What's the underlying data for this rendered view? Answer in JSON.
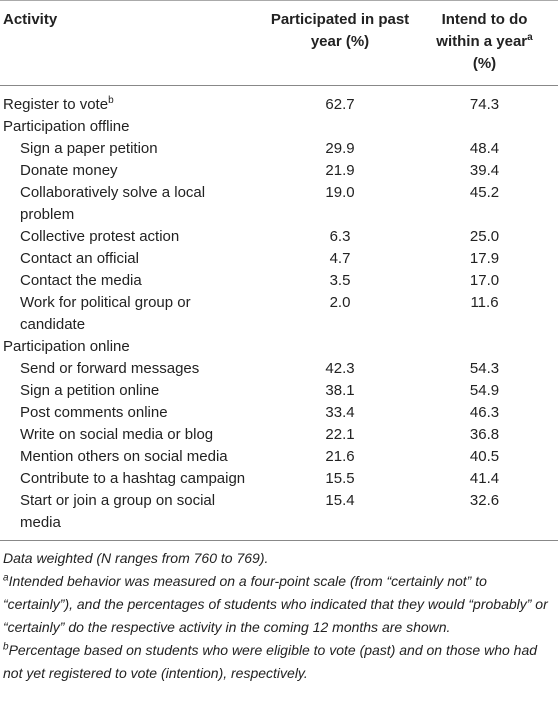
{
  "table": {
    "columns": [
      {
        "text": "Activity"
      },
      {
        "text": "Participated in past year (%)"
      },
      {
        "text": "Intend to do within a year",
        "sup": "a",
        "after": " (%)"
      }
    ],
    "rows": [
      {
        "label": "Register to vote",
        "sup": "b",
        "values": [
          "62.7",
          "74.3"
        ]
      }
    ],
    "groups": [
      {
        "label": "Participation offline",
        "rows": [
          {
            "label": "Sign a paper petition",
            "values": [
              "29.9",
              "48.4"
            ]
          },
          {
            "label": "Donate money",
            "values": [
              "21.9",
              "39.4"
            ]
          },
          {
            "label": "Collaboratively solve a local problem",
            "values": [
              "19.0",
              "45.2"
            ]
          },
          {
            "label": "Collective protest action",
            "values": [
              "6.3",
              "25.0"
            ]
          },
          {
            "label": "Contact an official",
            "values": [
              "4.7",
              "17.9"
            ]
          },
          {
            "label": "Contact the media",
            "values": [
              "3.5",
              "17.0"
            ]
          },
          {
            "label": "Work for political group or candidate",
            "values": [
              "2.0",
              "11.6"
            ]
          }
        ]
      },
      {
        "label": "Participation online",
        "rows": [
          {
            "label": "Send or forward messages",
            "values": [
              "42.3",
              "54.3"
            ]
          },
          {
            "label": "Sign a petition online",
            "values": [
              "38.1",
              "54.9"
            ]
          },
          {
            "label": "Post comments online",
            "values": [
              "33.4",
              "46.3"
            ]
          },
          {
            "label": "Write on social media or blog",
            "values": [
              "22.1",
              "36.8"
            ]
          },
          {
            "label": "Mention others on social media",
            "values": [
              "21.6",
              "40.5"
            ]
          },
          {
            "label": "Contribute to a hashtag campaign",
            "values": [
              "15.5",
              "41.4"
            ]
          },
          {
            "label": "Start or join a group on social media",
            "values": [
              "15.4",
              "32.6"
            ]
          }
        ]
      }
    ]
  },
  "notes": {
    "general": "Data weighted (N ranges from 760 to 769).",
    "footnotes": [
      {
        "mark": "a",
        "text": "Intended behavior was measured on a four-point scale (from “certainly not” to “certainly”), and the percentages of students who indicated that they would “probably” or “certainly” do the respective activity in the coming 12 months are shown."
      },
      {
        "mark": "b",
        "text": "Percentage based on students who were eligible to vote (past) and on those who had not yet registered to vote (intention), respectively."
      }
    ]
  }
}
